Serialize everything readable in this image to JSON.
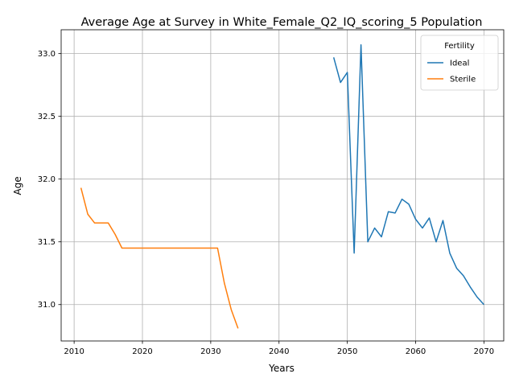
{
  "chart_data": {
    "type": "line",
    "title": "Average Age at Survey in White_Female_Q2_IQ_scoring_5 Population",
    "xlabel": "Years",
    "ylabel": "Age",
    "xlim": [
      2008.1,
      2072.9
    ],
    "ylim": [
      30.71,
      33.19
    ],
    "xticks": [
      2010,
      2020,
      2030,
      2040,
      2050,
      2060,
      2070
    ],
    "yticks": [
      31.0,
      31.5,
      32.0,
      32.5,
      33.0
    ],
    "xtick_labels": [
      "2010",
      "2020",
      "2030",
      "2040",
      "2050",
      "2060",
      "2070"
    ],
    "ytick_labels": [
      "31.0",
      "31.5",
      "32.0",
      "32.5",
      "33.0"
    ],
    "grid": true,
    "legend": {
      "title": "Fertility",
      "placement": "top-right"
    },
    "series": [
      {
        "name": "Ideal",
        "color": "#1f77b4",
        "x": [
          2048,
          2049,
          2050,
          2051,
          2052,
          2053,
          2054,
          2055,
          2056,
          2057,
          2058,
          2059,
          2060,
          2061,
          2062,
          2063,
          2064,
          2065,
          2066,
          2067,
          2068,
          2069,
          2070
        ],
        "y": [
          32.97,
          32.77,
          32.85,
          31.41,
          33.07,
          31.5,
          31.61,
          31.54,
          31.74,
          31.73,
          31.84,
          31.8,
          31.68,
          31.61,
          31.69,
          31.5,
          31.67,
          31.41,
          31.29,
          31.23,
          31.14,
          31.06,
          31.0
        ]
      },
      {
        "name": "Sterile",
        "color": "#ff7f0e",
        "x": [
          2011,
          2012,
          2013,
          2014,
          2015,
          2016,
          2017,
          2018,
          2019,
          2020,
          2021,
          2022,
          2023,
          2024,
          2025,
          2026,
          2027,
          2028,
          2029,
          2030,
          2031,
          2032,
          2033,
          2034
        ],
        "y": [
          31.93,
          31.72,
          31.65,
          31.65,
          31.65,
          31.56,
          31.45,
          31.45,
          31.45,
          31.45,
          31.45,
          31.45,
          31.45,
          31.45,
          31.45,
          31.45,
          31.45,
          31.45,
          31.45,
          31.45,
          31.45,
          31.17,
          30.96,
          30.81
        ]
      }
    ]
  }
}
